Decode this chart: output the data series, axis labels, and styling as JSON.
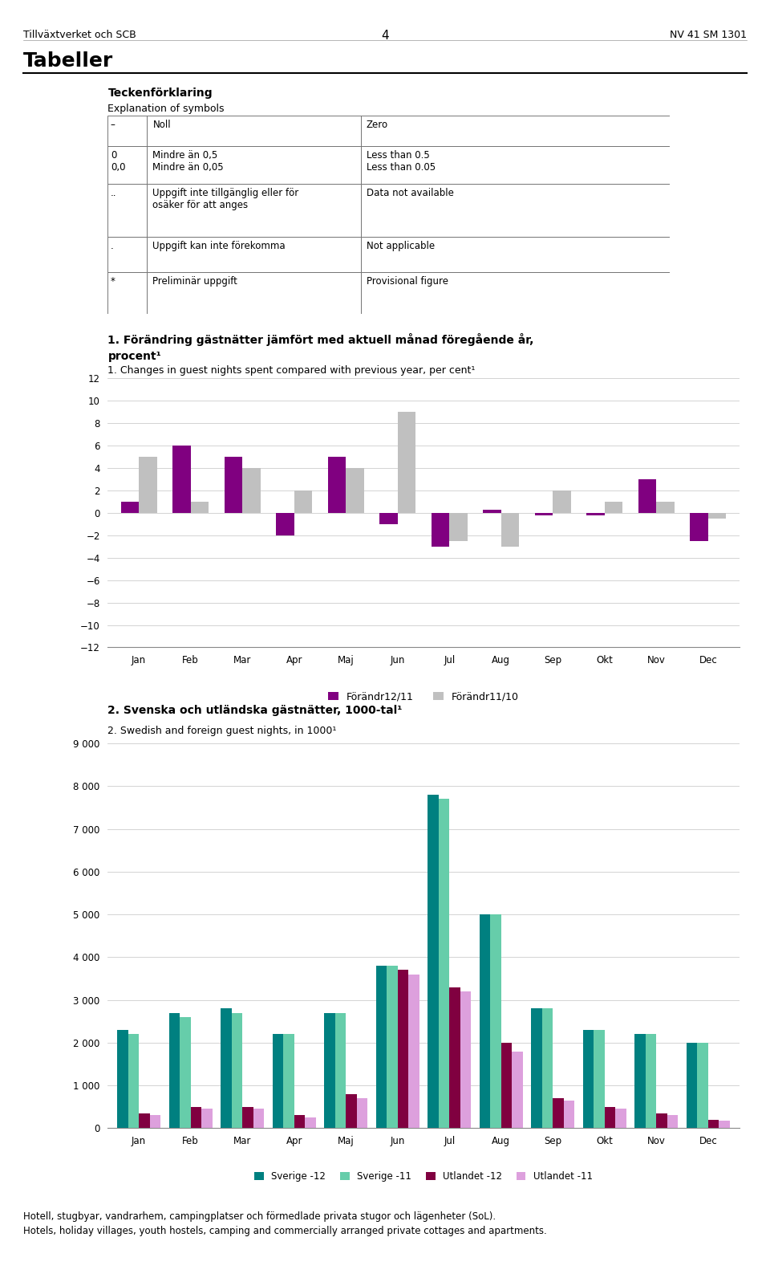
{
  "header_left": "Tillväxtverket och SCB",
  "header_center": "4",
  "header_right": "NV 41 SM 1301",
  "section_title": "Tabeller",
  "tecken_title": "Teckenförklaring",
  "tecken_subtitle": "Explanation of symbols",
  "table_col1": [
    "–",
    "0\n0,0",
    "..",
    ".",
    "*"
  ],
  "table_col2": [
    "Noll",
    "Mindre än 0,5\nMindre än 0,05",
    "Uppgift inte tillgänglig eller för\nosäker för att anges",
    "Uppgift kan inte förekomma",
    "Preliminär uppgift"
  ],
  "table_col3": [
    "Zero",
    "Less than 0.5\nLess than 0.05",
    "Data not available",
    "Not applicable",
    "Provisional figure"
  ],
  "chart1_title_sv": "1. Förändring gästnätter jämfört med aktuell månad föregående år,\nprocent¹",
  "chart1_title_en": "1. Changes in guest nights spent compared with previous year, per cent¹",
  "chart1_months": [
    "Jan",
    "Feb",
    "Mar",
    "Apr",
    "Maj",
    "Jun",
    "Jul",
    "Aug",
    "Sep",
    "Okt",
    "Nov",
    "Dec"
  ],
  "chart1_forandr1211": [
    1,
    6,
    5,
    -2,
    5,
    -1,
    -3,
    0.3,
    -0.2,
    -0.2,
    3,
    -2.5
  ],
  "chart1_forandr1110": [
    5,
    1,
    4,
    2,
    4,
    9,
    -2.5,
    -3,
    2,
    1,
    1,
    -0.5
  ],
  "chart1_ylim": [
    -12,
    12
  ],
  "chart1_yticks": [
    -12,
    -10,
    -8,
    -6,
    -4,
    -2,
    0,
    2,
    4,
    6,
    8,
    10,
    12
  ],
  "chart1_color_purple": "#800080",
  "chart1_color_gray": "#C0C0C0",
  "chart1_legend1": "Förändr12/11",
  "chart1_legend2": "Förändr11/10",
  "chart2_title_sv": "2. Svenska och utländska gästnätter, 1000-tal¹",
  "chart2_title_en": "2. Swedish and foreign guest nights, in 1000¹",
  "chart2_months": [
    "Jan",
    "Feb",
    "Mar",
    "Apr",
    "Maj",
    "Jun",
    "Jul",
    "Aug",
    "Sep",
    "Okt",
    "Nov",
    "Dec"
  ],
  "chart2_sverige12": [
    2300,
    2700,
    2800,
    2200,
    2700,
    3800,
    7800,
    5000,
    2800,
    2300,
    2200,
    2000
  ],
  "chart2_sverige11": [
    2200,
    2600,
    2700,
    2200,
    2700,
    3800,
    7700,
    5000,
    2800,
    2300,
    2200,
    2000
  ],
  "chart2_utlandet12": [
    350,
    500,
    500,
    300,
    800,
    3700,
    3300,
    2000,
    700,
    500,
    350,
    200
  ],
  "chart2_utlandet11": [
    300,
    450,
    450,
    250,
    700,
    3600,
    3200,
    1800,
    650,
    450,
    300,
    180
  ],
  "chart2_ylim": [
    0,
    9000
  ],
  "chart2_yticks": [
    0,
    1000,
    2000,
    3000,
    4000,
    5000,
    6000,
    7000,
    8000,
    9000
  ],
  "chart2_color_sverige12": "#008080",
  "chart2_color_sverige11": "#66CDAA",
  "chart2_color_utlandet12": "#800040",
  "chart2_color_utlandet11": "#DDA0DD",
  "chart2_legend1": "Sverige -12",
  "chart2_legend2": "Sverige -11",
  "chart2_legend3": "Utlandet -12",
  "chart2_legend4": "Utlandet -11",
  "footer_text": "Hotell, stugbyar, vandrarhem, campingplatser och förmedlade privata stugor och lägenheter (SoL).\nHotels, holiday villages, youth hostels, camping and commercially arranged private cottages and apartments."
}
